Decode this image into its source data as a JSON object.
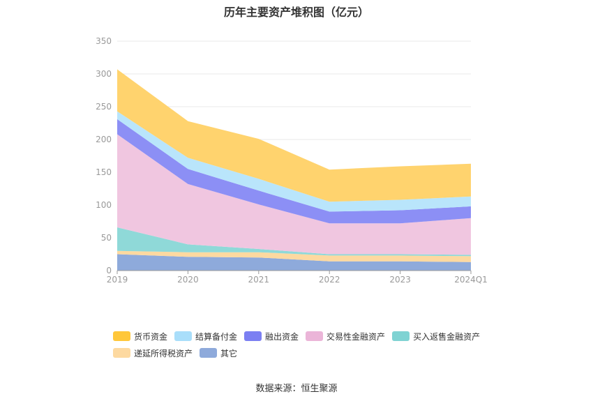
{
  "chart_data": {
    "type": "area",
    "stacked": true,
    "title": "历年主要资产堆积图（亿元）",
    "categories": [
      "2019",
      "2020",
      "2021",
      "2022",
      "2023",
      "2024Q1"
    ],
    "ylim": [
      0,
      350
    ],
    "yticks": [
      0,
      50,
      100,
      150,
      200,
      250,
      300,
      350
    ],
    "grid": true,
    "legend_position": "bottom",
    "series": [
      {
        "name": "其它",
        "color": "#8eaadb",
        "values": [
          25,
          21,
          20,
          14,
          14,
          13
        ]
      },
      {
        "name": "递延所得税资产",
        "color": "#fdd9a0",
        "values": [
          5,
          7,
          8,
          9,
          9,
          9
        ]
      },
      {
        "name": "买入返售金融资产",
        "color": "#8fd9d8",
        "values": [
          36,
          12,
          5,
          2,
          2,
          2
        ]
      },
      {
        "name": "交易性金融资产",
        "color": "#f0c6e0",
        "values": [
          142,
          92,
          68,
          47,
          47,
          56
        ]
      },
      {
        "name": "融出资金",
        "color": "#8c8ff5",
        "values": [
          23,
          23,
          21,
          18,
          20,
          18
        ]
      },
      {
        "name": "结算备付金",
        "color": "#b9e5fb",
        "values": [
          12,
          17,
          18,
          15,
          16,
          15
        ]
      },
      {
        "name": "货币资金",
        "color": "#ffd36e",
        "values": [
          64,
          56,
          61,
          49,
          51,
          50
        ]
      }
    ]
  },
  "legend": {
    "rows": [
      [
        {
          "label": "货币资金",
          "color": "#ffc73a"
        },
        {
          "label": "结算备付金",
          "color": "#a9defa"
        },
        {
          "label": "融出资金",
          "color": "#7b7ff2"
        },
        {
          "label": "交易性金融资产",
          "color": "#ebb5d8"
        },
        {
          "label": "买入返售金融资产",
          "color": "#7fd3d3"
        }
      ],
      [
        {
          "label": "递延所得税资产",
          "color": "#fdd9a0"
        },
        {
          "label": "其它",
          "color": "#8eaadb"
        }
      ]
    ]
  },
  "footer": {
    "source": "数据来源：恒生聚源"
  }
}
